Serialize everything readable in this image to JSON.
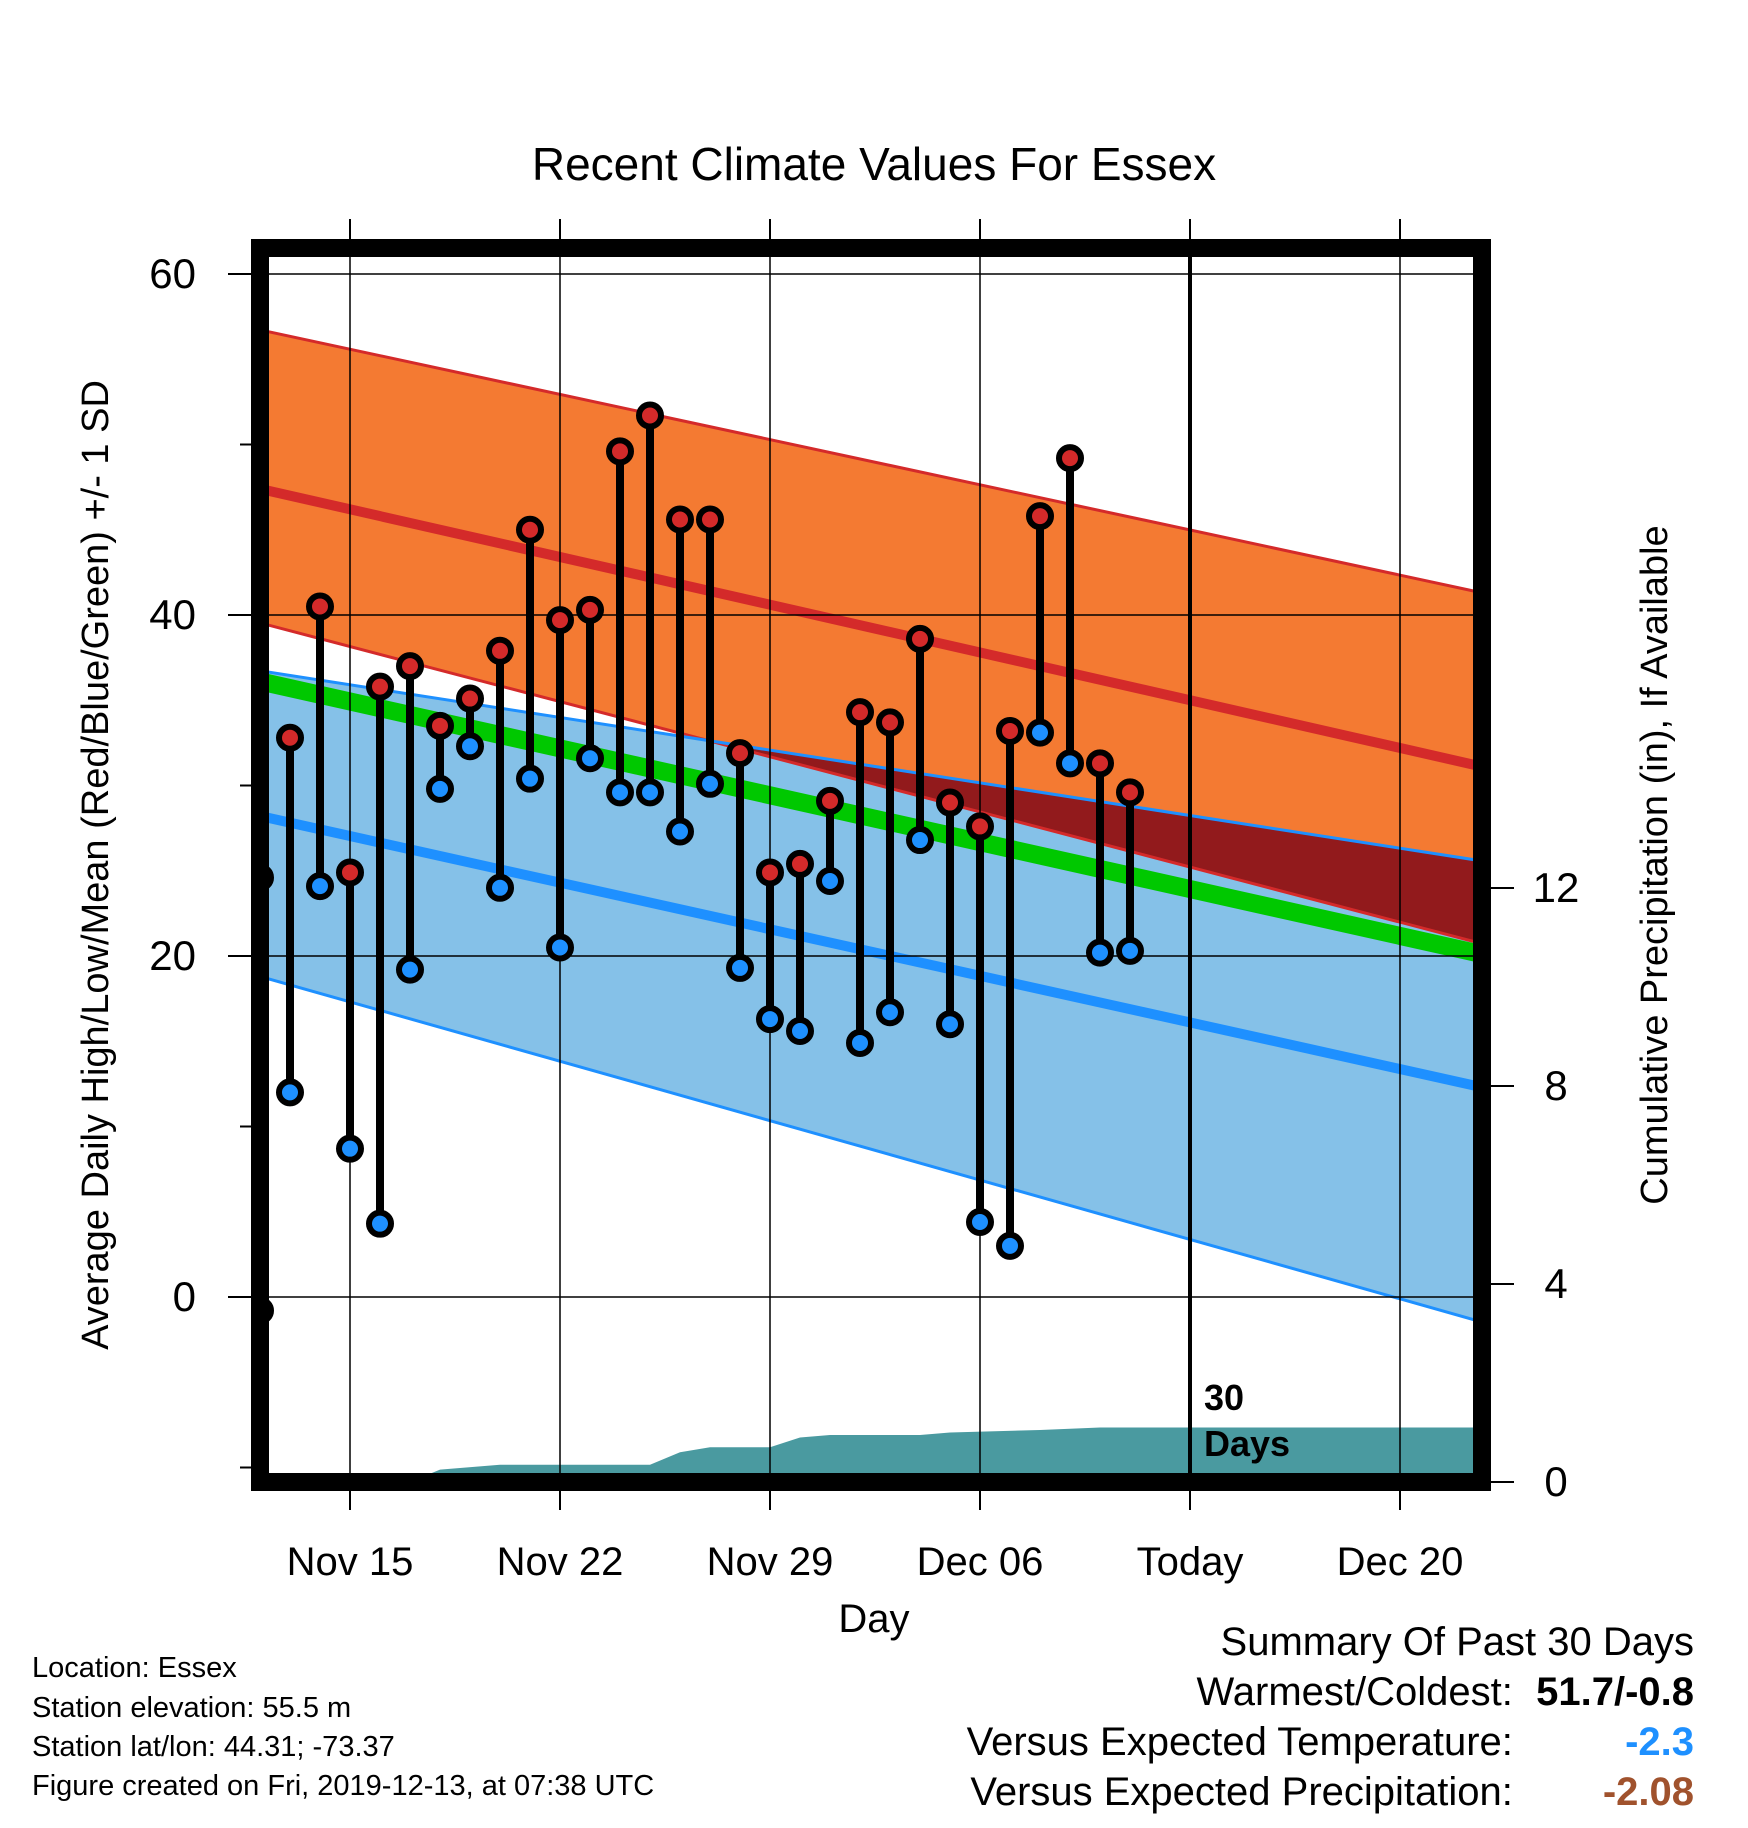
{
  "chart_data": {
    "type": "line",
    "title": "Recent Climate Values For Essex",
    "xlabel": "Day",
    "ylabel": "Average Daily High/Low/Mean (Red/Blue/Green) +/- 1 SD",
    "y2label": "Cumulative Precipitation (in), If Available",
    "x_range": [
      "Nov 11",
      "Dec 23"
    ],
    "ylim": [
      -10,
      62
    ],
    "y2lim": [
      0,
      20
    ],
    "x_ticks": [
      {
        "date": "Nov 15",
        "label": "Nov 15"
      },
      {
        "date": "Nov 22",
        "label": "Nov 22"
      },
      {
        "date": "Nov 29",
        "label": "Nov 29"
      },
      {
        "date": "Dec 06",
        "label": "Dec 06"
      },
      {
        "date": "Dec 13",
        "label": "Today"
      },
      {
        "date": "Dec 20",
        "label": "Dec 20"
      }
    ],
    "y_ticks": [
      0,
      20,
      40,
      60
    ],
    "y2_ticks": [
      0,
      4,
      8,
      12
    ],
    "grid": true,
    "today": "Dec 13",
    "today_annotation": [
      "30",
      "Days"
    ],
    "normal_high": {
      "start": {
        "date": "Nov 11",
        "mean": 47.8,
        "upper": 57.1,
        "lower": 40.0
      },
      "end": {
        "date": "Dec 23",
        "mean": 31.0,
        "upper": 41.2,
        "lower": 20.6
      }
    },
    "normal_low": {
      "start": {
        "date": "Nov 11",
        "mean": 28.6,
        "upper": 37.0,
        "lower": 19.3
      },
      "end": {
        "date": "Dec 23",
        "mean": 12.2,
        "upper": 25.5,
        "lower": -1.6
      }
    },
    "normal_mean": {
      "start": {
        "date": "Nov 11",
        "value": 36.5
      },
      "end": {
        "date": "Dec 23",
        "value": 20.0
      }
    },
    "observed": [
      {
        "date": "Nov 12",
        "high": 24.6,
        "low": -0.8
      },
      {
        "date": "Nov 13",
        "high": 32.8,
        "low": 12.0
      },
      {
        "date": "Nov 14",
        "high": 40.5,
        "low": 24.1
      },
      {
        "date": "Nov 15",
        "high": 24.9,
        "low": 8.7
      },
      {
        "date": "Nov 16",
        "high": 35.8,
        "low": 4.3
      },
      {
        "date": "Nov 17",
        "high": 37.0,
        "low": 19.2
      },
      {
        "date": "Nov 18",
        "high": 33.5,
        "low": 29.8
      },
      {
        "date": "Nov 19",
        "high": 35.1,
        "low": 32.3
      },
      {
        "date": "Nov 20",
        "high": 37.9,
        "low": 24.0
      },
      {
        "date": "Nov 21",
        "high": 45.0,
        "low": 30.4
      },
      {
        "date": "Nov 22",
        "high": 39.7,
        "low": 20.5
      },
      {
        "date": "Nov 23",
        "high": 40.3,
        "low": 31.6
      },
      {
        "date": "Nov 24",
        "high": 49.6,
        "low": 29.6
      },
      {
        "date": "Nov 25",
        "high": 51.7,
        "low": 29.6
      },
      {
        "date": "Nov 26",
        "high": 45.6,
        "low": 27.3
      },
      {
        "date": "Nov 27",
        "high": 45.6,
        "low": 30.1
      },
      {
        "date": "Nov 28",
        "high": 31.9,
        "low": 19.3
      },
      {
        "date": "Nov 29",
        "high": 24.9,
        "low": 16.3
      },
      {
        "date": "Nov 30",
        "high": 25.4,
        "low": 15.6
      },
      {
        "date": "Dec 01",
        "high": 29.1,
        "low": 24.4
      },
      {
        "date": "Dec 02",
        "high": 34.3,
        "low": 14.9
      },
      {
        "date": "Dec 03",
        "high": 33.7,
        "low": 16.7
      },
      {
        "date": "Dec 04",
        "high": 38.6,
        "low": 26.8
      },
      {
        "date": "Dec 05",
        "high": 29.0,
        "low": 16.0
      },
      {
        "date": "Dec 06",
        "high": 27.6,
        "low": 4.4
      },
      {
        "date": "Dec 07",
        "high": 33.2,
        "low": 3.0
      },
      {
        "date": "Dec 08",
        "high": 45.8,
        "low": 33.1
      },
      {
        "date": "Dec 09",
        "high": 49.2,
        "low": 31.3
      },
      {
        "date": "Dec 10",
        "high": 31.3,
        "low": 20.2
      },
      {
        "date": "Dec 11",
        "high": 29.6,
        "low": 20.3
      }
    ],
    "cumulative_precip": [
      {
        "date": "Nov 11",
        "value": 0
      },
      {
        "date": "Nov 17",
        "value": 0
      },
      {
        "date": "Nov 18",
        "value": 0.25
      },
      {
        "date": "Nov 20",
        "value": 0.35
      },
      {
        "date": "Nov 25",
        "value": 0.35
      },
      {
        "date": "Nov 26",
        "value": 0.6
      },
      {
        "date": "Nov 27",
        "value": 0.7
      },
      {
        "date": "Nov 29",
        "value": 0.7
      },
      {
        "date": "Nov 30",
        "value": 0.9
      },
      {
        "date": "Dec 01",
        "value": 0.95
      },
      {
        "date": "Dec 04",
        "value": 0.95
      },
      {
        "date": "Dec 05",
        "value": 1.0
      },
      {
        "date": "Dec 08",
        "value": 1.05
      },
      {
        "date": "Dec 10",
        "value": 1.1
      },
      {
        "date": "Dec 23",
        "value": 1.1
      }
    ],
    "colors": {
      "high_band": "#F47A32",
      "high_line": "#D42A2A",
      "low_band": "#85C1E8",
      "low_line": "#1E90FF",
      "overlap_band": "#921A1C",
      "mean_line": "#00C800",
      "precip": "#4A9AA0",
      "high_marker": "#D42A2A",
      "low_marker": "#1E90FF"
    }
  },
  "footer": {
    "location": "Location: Essex",
    "elevation": "Station elevation: 55.5 m",
    "latlon": "Station lat/lon: 44.31; -73.37",
    "created": "Figure created on Fri, 2019-12-13, at 07:38 UTC"
  },
  "summary": {
    "title": "Summary Of Past 30 Days",
    "warmest_label": "Warmest/Coldest:",
    "warmest_value": "51.7/-0.8",
    "temp_label": "Versus Expected Temperature:",
    "temp_value": "-2.3",
    "temp_color": "#1E90FF",
    "precip_label": "Versus Expected Precipitation:",
    "precip_value": "-2.08",
    "precip_color": "#A0522D"
  }
}
